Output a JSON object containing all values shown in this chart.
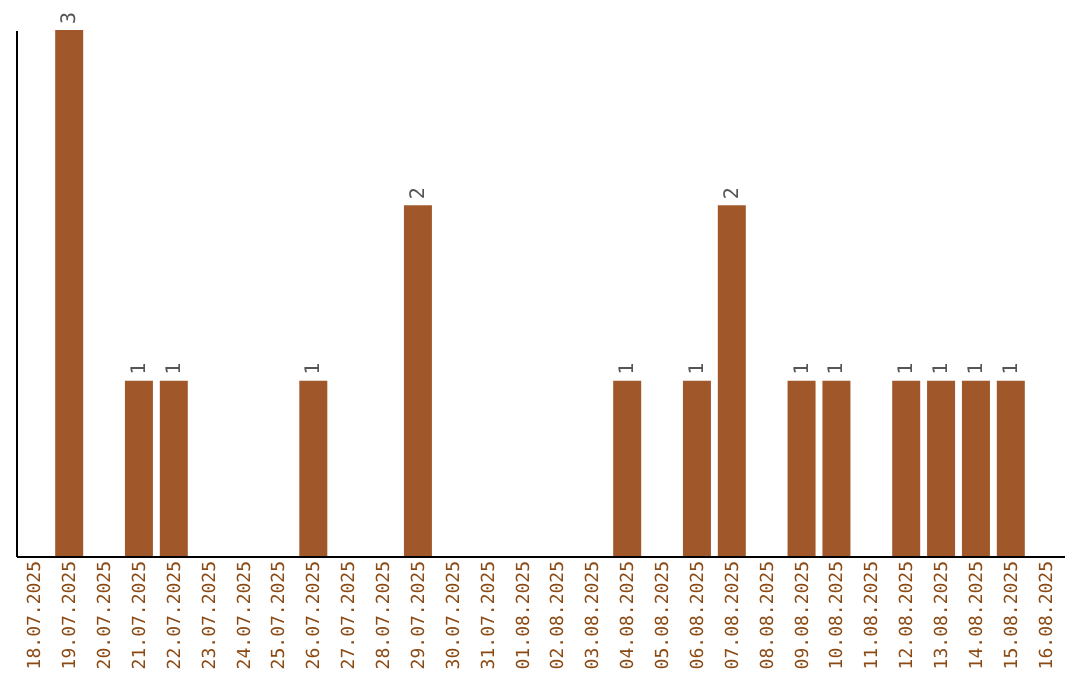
{
  "chart_data": {
    "type": "bar",
    "categories": [
      "18.07.2025",
      "19.07.2025",
      "20.07.2025",
      "21.07.2025",
      "22.07.2025",
      "23.07.2025",
      "24.07.2025",
      "25.07.2025",
      "26.07.2025",
      "27.07.2025",
      "28.07.2025",
      "29.07.2025",
      "30.07.2025",
      "31.07.2025",
      "01.08.2025",
      "02.08.2025",
      "03.08.2025",
      "04.08.2025",
      "05.08.2025",
      "06.08.2025",
      "07.08.2025",
      "08.08.2025",
      "09.08.2025",
      "10.08.2025",
      "11.08.2025",
      "12.08.2025",
      "13.08.2025",
      "14.08.2025",
      "15.08.2025",
      "16.08.2025"
    ],
    "values": [
      0,
      3,
      0,
      1,
      1,
      0,
      0,
      0,
      1,
      0,
      0,
      2,
      0,
      0,
      0,
      0,
      0,
      1,
      0,
      1,
      2,
      0,
      1,
      1,
      0,
      1,
      1,
      1,
      1,
      0
    ],
    "value_labels": [
      null,
      "3",
      null,
      "1",
      "1",
      null,
      null,
      null,
      "1",
      null,
      null,
      "2",
      null,
      null,
      null,
      null,
      null,
      "1",
      null,
      "1",
      "2",
      null,
      "1",
      "1",
      null,
      "1",
      "1",
      "1",
      "1",
      null
    ],
    "color": "#a0582a",
    "tick_labels": "x",
    "grid": false
  }
}
